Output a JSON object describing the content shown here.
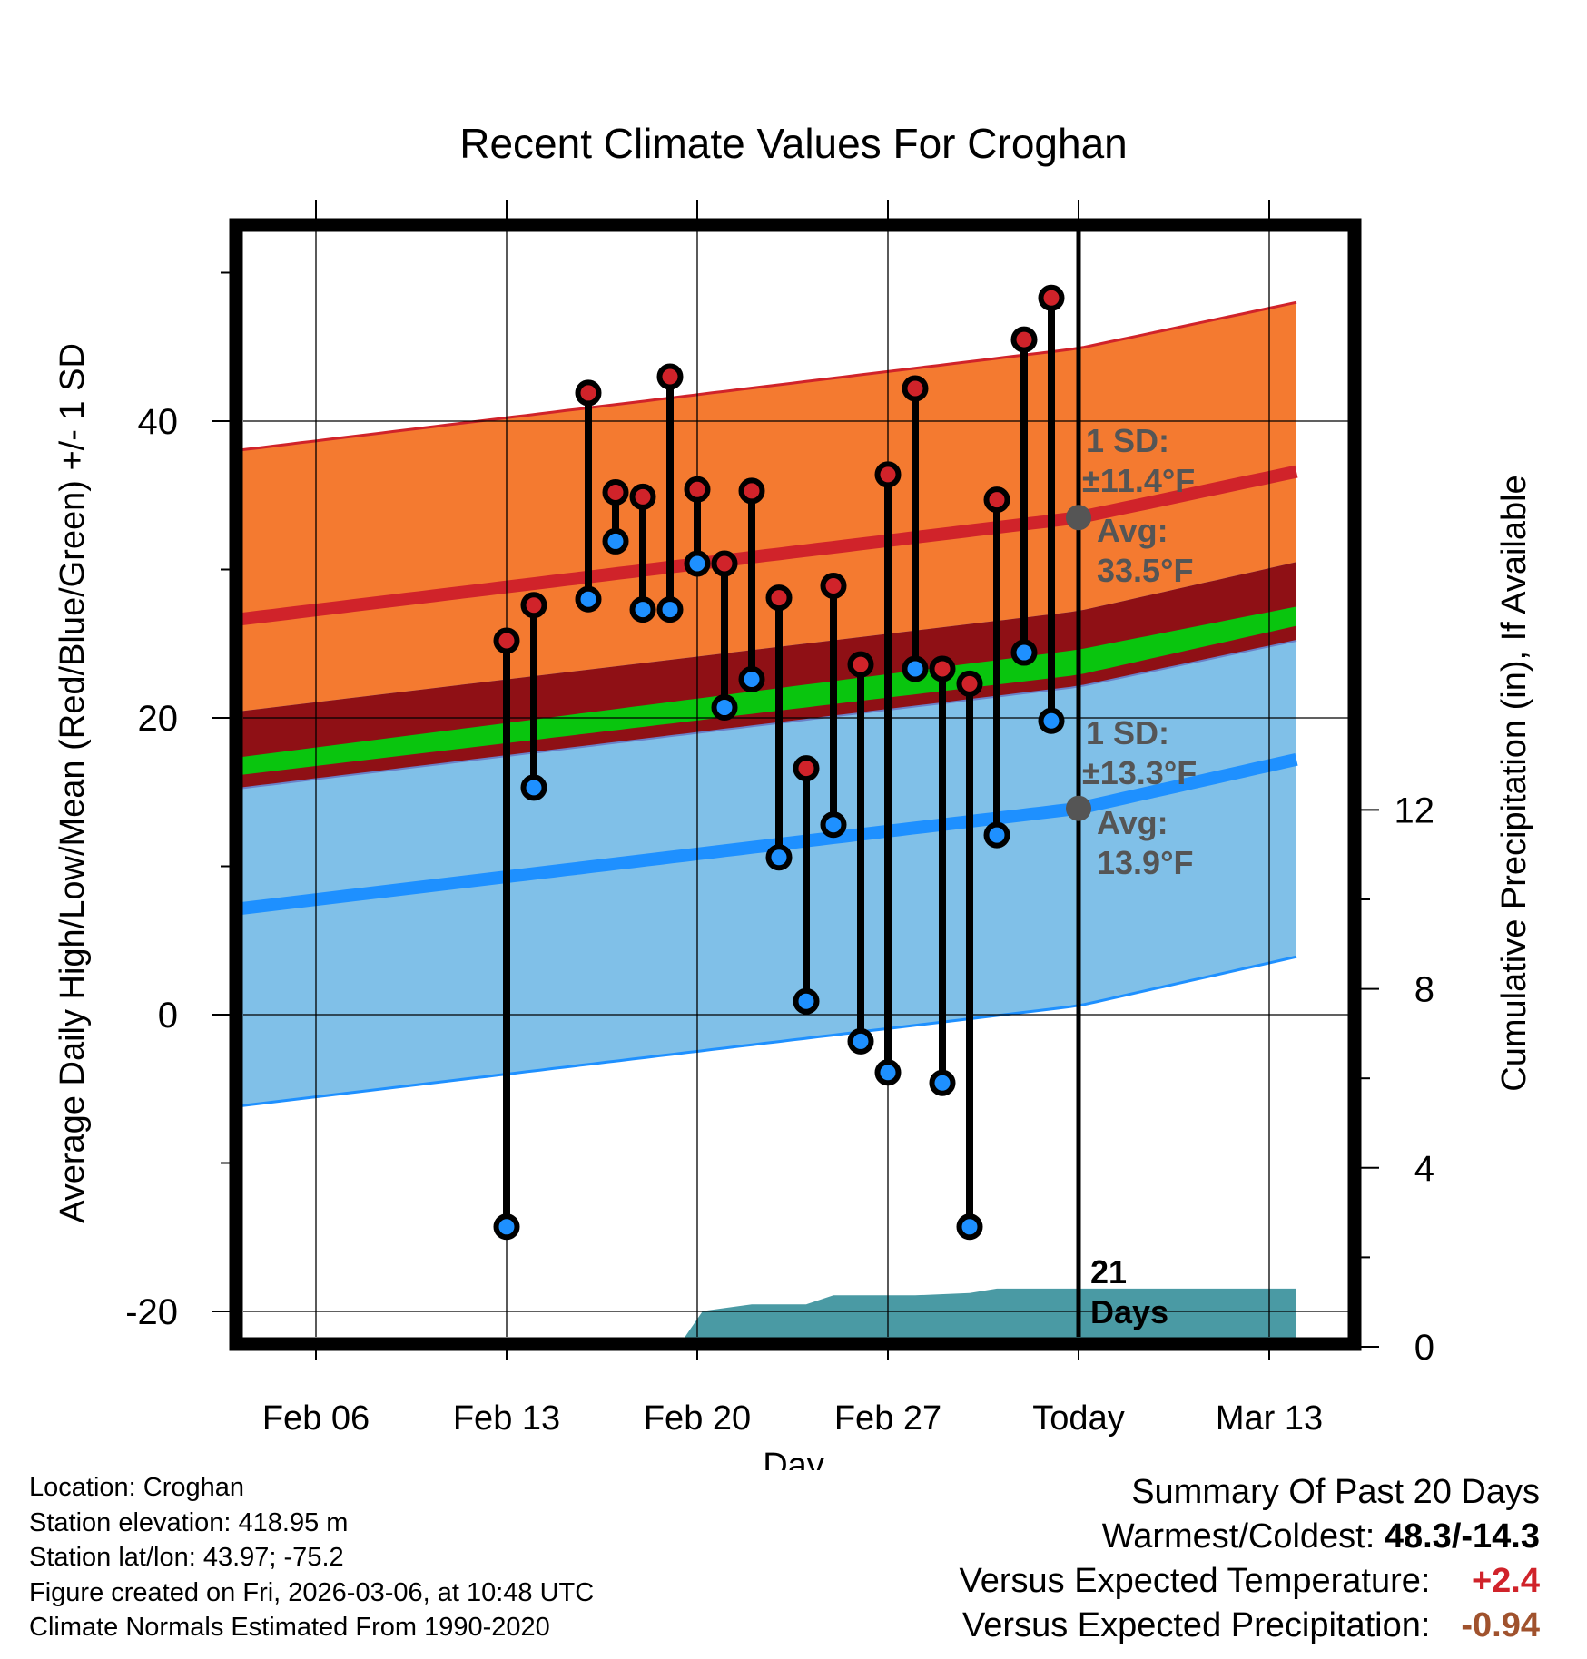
{
  "chart_data": {
    "type": "line",
    "title": "Recent Climate Values For Croghan",
    "xlabel": "Day",
    "ylabel": "Average Daily High/Low/Mean (Red/Blue/Green) +/- 1 SD",
    "y2label": "Cumulative Precipitation (in), If Available",
    "xlim": [
      -4.5,
      36.5
    ],
    "ylim": [
      -21.8,
      53.5
    ],
    "y2lim": [
      0,
      18
    ],
    "xticks": [
      {
        "x": 0,
        "label": "Feb 06"
      },
      {
        "x": 7,
        "label": "Feb 13"
      },
      {
        "x": 14,
        "label": "Feb 20"
      },
      {
        "x": 21,
        "label": "Feb 27"
      },
      {
        "x": 28,
        "label": "Today"
      },
      {
        "x": 35,
        "label": "Mar 13"
      }
    ],
    "yticks": [
      -20,
      0,
      20,
      40
    ],
    "y2ticks": [
      0,
      4,
      8,
      12
    ],
    "today_x": 28,
    "normals": {
      "x": [
        -3,
        28,
        36
      ],
      "high_avg": [
        26.6,
        33.5,
        36.6
      ],
      "high_sd": 11.4,
      "low_avg": [
        7.1,
        13.9,
        17.2
      ],
      "low_sd": 13.3,
      "mean_band_bottom": [
        16.1,
        22.9,
        26.2
      ],
      "mean_band_top": [
        17.3,
        24.6,
        27.5
      ]
    },
    "observations": {
      "x": [
        7,
        8,
        10,
        11,
        12,
        13,
        14,
        15,
        16,
        17,
        18,
        19,
        20,
        21,
        22,
        23,
        24,
        25,
        26,
        27
      ],
      "high": [
        25.2,
        27.6,
        41.9,
        35.2,
        34.9,
        43.0,
        35.4,
        30.4,
        35.3,
        28.1,
        16.6,
        28.9,
        23.6,
        36.4,
        42.2,
        23.3,
        22.3,
        34.7,
        45.5,
        48.3
      ],
      "low": [
        -14.3,
        15.3,
        28.0,
        31.9,
        27.3,
        27.3,
        30.4,
        20.7,
        22.6,
        10.6,
        0.9,
        12.8,
        -1.8,
        -3.9,
        23.3,
        -4.6,
        -14.3,
        12.1,
        24.4,
        19.8
      ]
    },
    "precip": {
      "x": [
        13.3,
        14.2,
        16,
        18,
        19,
        22,
        24,
        25,
        26,
        27.5,
        28,
        36
      ],
      "cumulative": [
        0,
        0.8,
        0.95,
        0.95,
        1.15,
        1.15,
        1.2,
        1.3,
        1.3,
        1.3,
        1.3,
        1.3
      ]
    },
    "annotations": {
      "high_sd_label": "1 SD:",
      "high_sd_value": "±11.4°F",
      "high_avg_label": "Avg:",
      "high_avg_value": "33.5°F",
      "low_sd_label": "1 SD:",
      "low_sd_value": "±13.3°F",
      "low_avg_label": "Avg:",
      "low_avg_value": "13.9°F",
      "days_number": "21",
      "days_word": "Days"
    },
    "colors": {
      "high_band": "#f47a30",
      "high_line": "#d0232a",
      "overlap_band": "#8f1015",
      "mean_band": "#09c50e",
      "low_band": "#80c0e8",
      "low_line": "#1e90ff",
      "precip_fill": "#4a9aa4",
      "high_dot": "#d0232a",
      "low_dot": "#1e90ff",
      "annotation_text": "#555555"
    }
  },
  "footer": {
    "location": "Location: Croghan",
    "elevation": "Station elevation: 418.95 m",
    "latlon": "Station lat/lon: 43.97; -75.2",
    "created": "Figure created on Fri, 2026-03-06, at 10:48 UTC",
    "normals_note": "Climate Normals Estimated From 1990-2020",
    "summary_title": "Summary Of Past 20 Days",
    "warm_cold_label": "Warmest/Coldest:",
    "warm_cold_value": "48.3/-14.3",
    "temp_label": "Versus Expected Temperature:",
    "temp_value": "+2.4",
    "temp_color": "#d0232a",
    "precip_label": "Versus Expected Precipitation:",
    "precip_value": "-0.94",
    "precip_color": "#a0522d"
  }
}
